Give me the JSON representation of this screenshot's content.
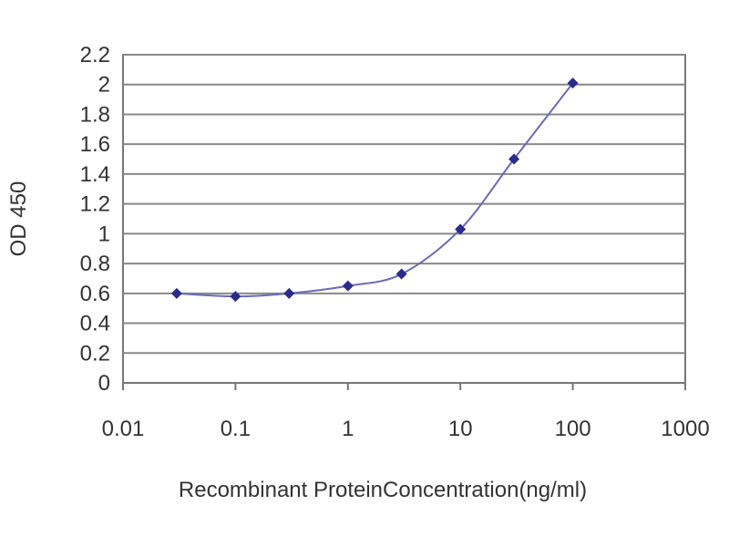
{
  "chart_data": {
    "type": "line",
    "xlabel": "Recombinant ProteinConcentration(ng/ml)",
    "ylabel": "OD 450",
    "xscale": "log",
    "xlim": [
      0.01,
      1000
    ],
    "ylim": [
      0,
      2.2
    ],
    "grid": "horizontal",
    "legend": "none",
    "x_ticks": [
      "0.01",
      "0.1",
      "1",
      "10",
      "100",
      "1000"
    ],
    "y_ticks": [
      "0",
      "0.2",
      "0.4",
      "0.6",
      "0.8",
      "1",
      "1.2",
      "1.4",
      "1.6",
      "1.8",
      "2",
      "2.2"
    ],
    "series": [
      {
        "x": [
          0.03,
          0.1,
          0.3,
          1,
          3,
          10,
          30,
          100
        ],
        "y": [
          0.6,
          0.58,
          0.6,
          0.65,
          0.73,
          1.03,
          1.5,
          2.01
        ],
        "color": "#2b2b8c",
        "line_color": "#6a6ab8"
      }
    ]
  }
}
